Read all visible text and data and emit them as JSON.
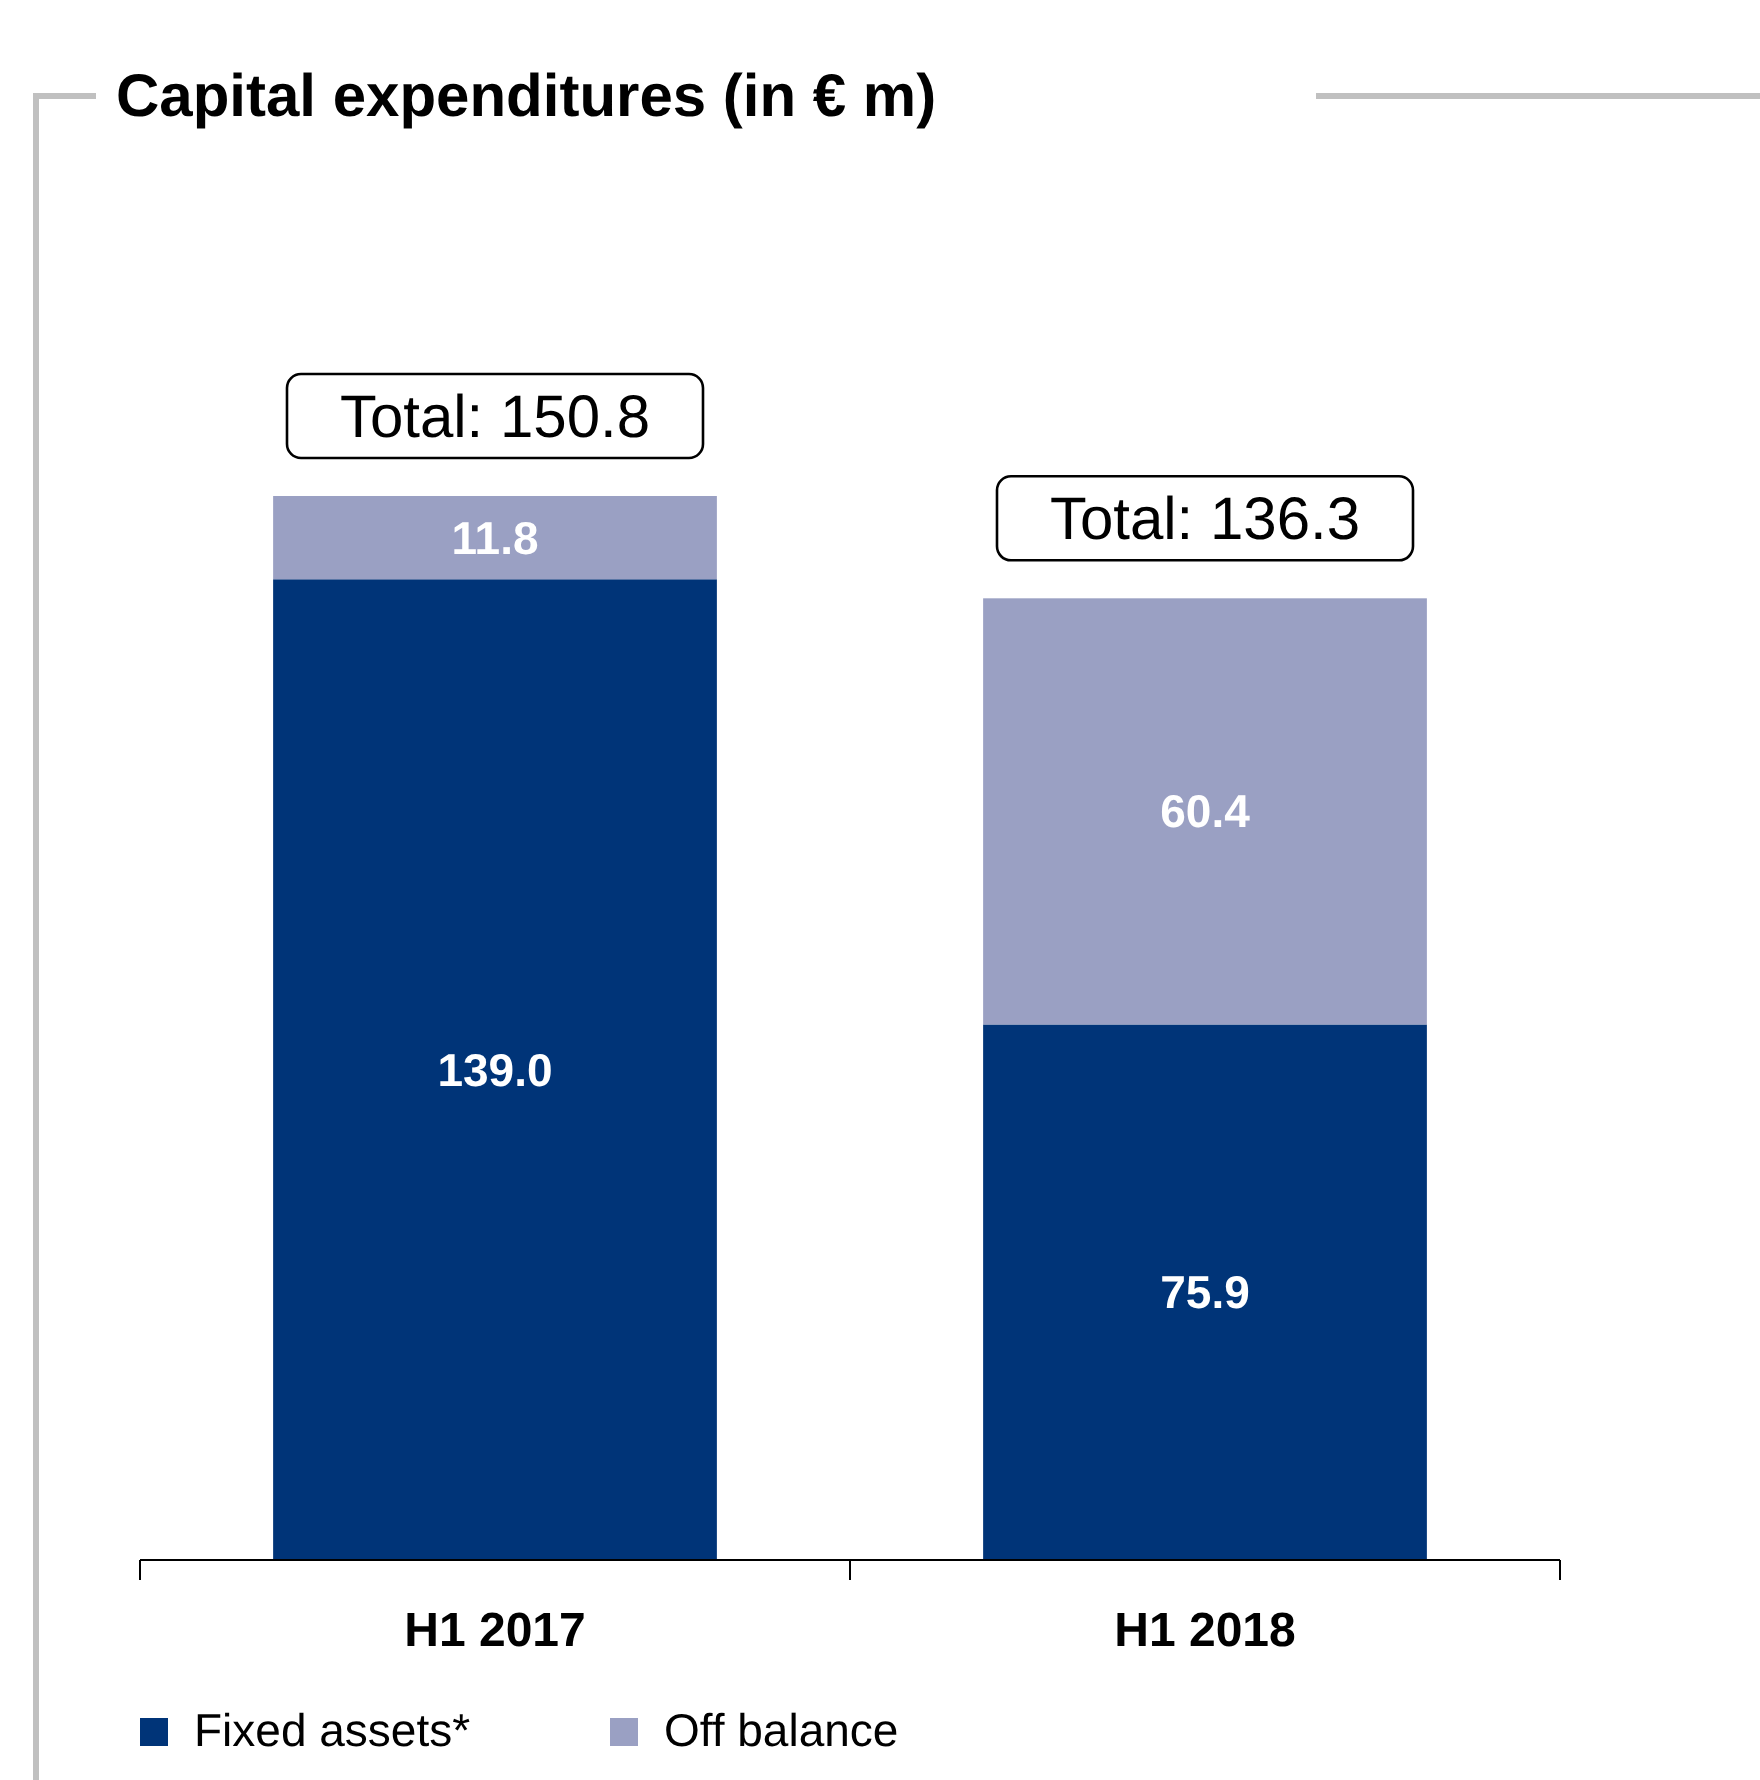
{
  "chart_data": {
    "type": "bar",
    "title": "Capital expenditures (in € m)",
    "categories": [
      "H1 2017",
      "H1 2018"
    ],
    "stacked": true,
    "legend": "bottom",
    "series": [
      {
        "name": "Fixed assets*",
        "color": "#003478",
        "values": [
          139.0,
          75.9
        ],
        "value_labels": [
          "139.0",
          "75.9"
        ]
      },
      {
        "name": "Off balance",
        "color": "#9aa0c3",
        "values": [
          11.8,
          60.4
        ],
        "value_labels": [
          "11.8",
          "60.4"
        ]
      }
    ],
    "totals": [
      "Total: 150.8",
      "Total: 136.3"
    ]
  }
}
